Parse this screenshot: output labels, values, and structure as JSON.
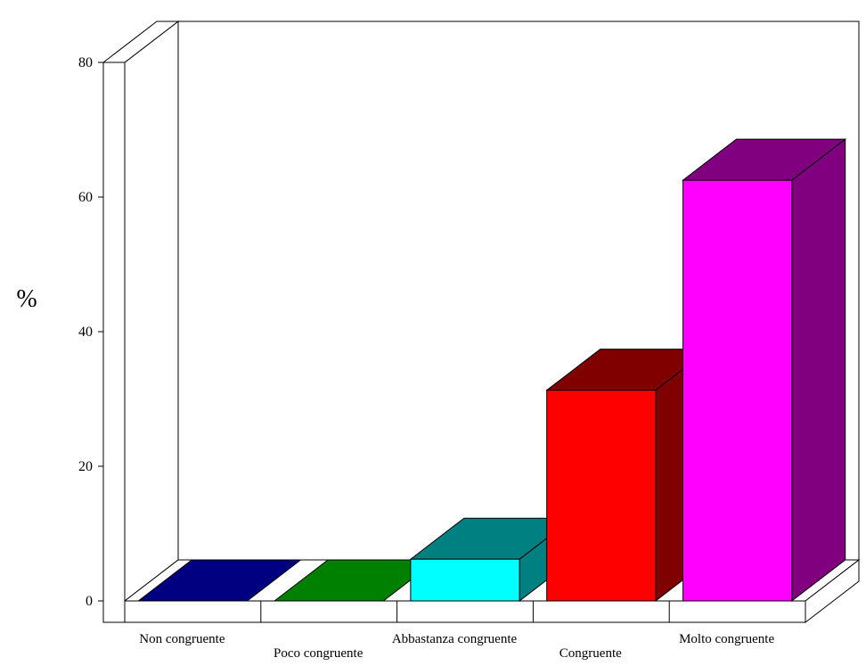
{
  "chart_data": {
    "type": "bar",
    "style": "3d",
    "title": "",
    "xlabel": "",
    "ylabel": "%",
    "ylim": [
      0,
      80
    ],
    "yticks": [
      0,
      20,
      40,
      60,
      80
    ],
    "grid": false,
    "legend": "none",
    "categories": [
      "Non congruente",
      "Poco congruente",
      "Abbastanza congruente",
      "Congruente",
      "Molto congruente"
    ],
    "values": [
      0,
      0,
      6.2,
      31.3,
      62.5
    ],
    "colors": {
      "front": [
        "#000080",
        "#008000",
        "#00ffff",
        "#ff0000",
        "#ff00ff"
      ],
      "side": [
        "#000080",
        "#008000",
        "#008080",
        "#800000",
        "#800080"
      ],
      "top": [
        "#000080",
        "#008000",
        "#008080",
        "#800000",
        "#800080"
      ]
    }
  }
}
